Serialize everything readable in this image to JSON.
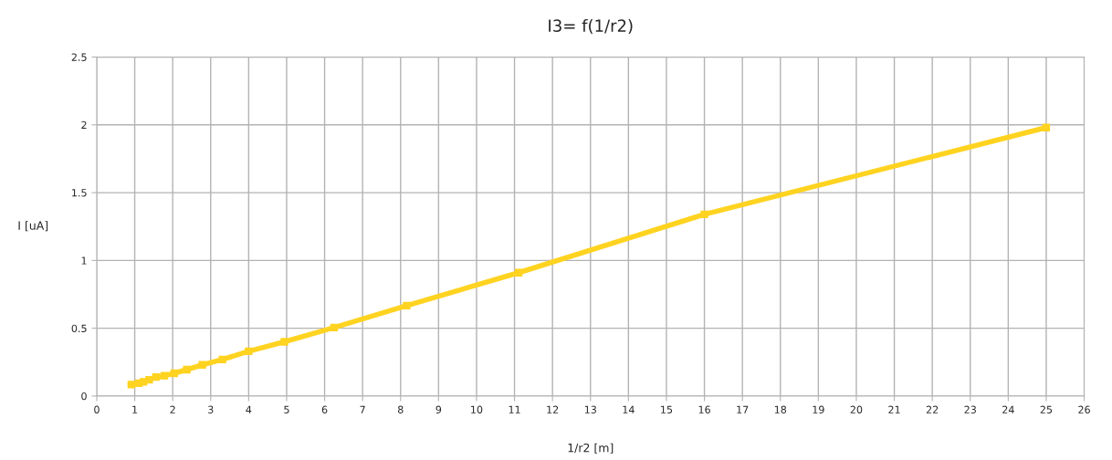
{
  "chart_data": {
    "type": "line",
    "title": "I3= f(1/r2)",
    "xlabel": "1/r2 [m]",
    "ylabel": "I [uA]",
    "xlim": [
      0,
      26
    ],
    "xticks": [
      0,
      1,
      2,
      3,
      4,
      5,
      6,
      7,
      8,
      9,
      10,
      11,
      12,
      13,
      14,
      15,
      16,
      17,
      18,
      19,
      20,
      21,
      22,
      23,
      24,
      25,
      26
    ],
    "ylim": [
      0,
      2.5
    ],
    "yticks": [
      0,
      0.5,
      1,
      1.5,
      2,
      2.5
    ],
    "grid": true,
    "marker": "square",
    "line_style": "solid",
    "series": [
      {
        "color": "#ffd320",
        "x": [
          0.91,
          1.11,
          1.23,
          1.38,
          1.56,
          1.78,
          2.04,
          2.37,
          2.78,
          3.31,
          4.0,
          4.94,
          6.25,
          8.16,
          11.11,
          16.0,
          25.0
        ],
        "values": [
          0.085,
          0.095,
          0.105,
          0.12,
          0.14,
          0.15,
          0.168,
          0.195,
          0.23,
          0.27,
          0.33,
          0.4,
          0.505,
          0.667,
          0.91,
          1.34,
          1.98
        ]
      }
    ]
  }
}
